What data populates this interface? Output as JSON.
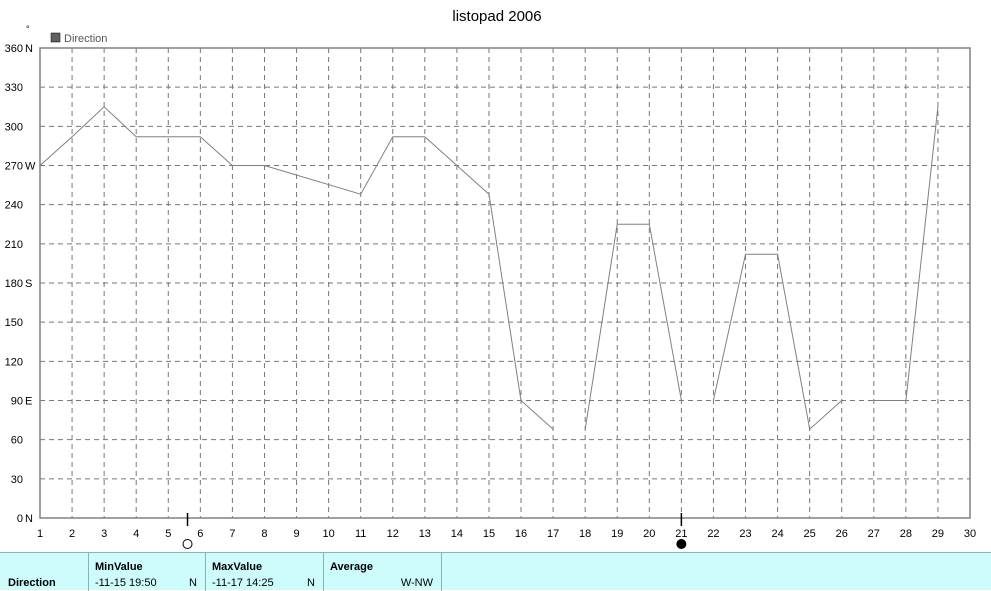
{
  "chart_data": {
    "type": "line",
    "title": "listopad 2006",
    "y_unit_symbol": "°",
    "legend": [
      {
        "name": "Direction",
        "color": "#606060"
      }
    ],
    "legend_position": "top-left",
    "grid": true,
    "xlim": [
      1,
      30
    ],
    "ylim": [
      0,
      360
    ],
    "x_ticks": [
      1,
      2,
      3,
      4,
      5,
      6,
      7,
      8,
      9,
      10,
      11,
      12,
      13,
      14,
      15,
      16,
      17,
      18,
      19,
      20,
      21,
      22,
      23,
      24,
      25,
      26,
      27,
      28,
      29,
      30
    ],
    "y_ticks": [
      {
        "value": 0,
        "label": "0",
        "dir": "N"
      },
      {
        "value": 30,
        "label": "30",
        "dir": ""
      },
      {
        "value": 60,
        "label": "60",
        "dir": ""
      },
      {
        "value": 90,
        "label": "90",
        "dir": "E"
      },
      {
        "value": 120,
        "label": "120",
        "dir": ""
      },
      {
        "value": 150,
        "label": "150",
        "dir": ""
      },
      {
        "value": 180,
        "label": "180",
        "dir": "S"
      },
      {
        "value": 210,
        "label": "210",
        "dir": ""
      },
      {
        "value": 240,
        "label": "240",
        "dir": ""
      },
      {
        "value": 270,
        "label": "270",
        "dir": "W"
      },
      {
        "value": 300,
        "label": "300",
        "dir": ""
      },
      {
        "value": 330,
        "label": "330",
        "dir": ""
      },
      {
        "value": 360,
        "label": "360",
        "dir": "N"
      }
    ],
    "series": [
      {
        "name": "Direction",
        "color": "#808080",
        "segments": [
          [
            [
              1,
              270
            ],
            [
              2,
              292
            ],
            [
              3,
              315
            ],
            [
              4,
              292
            ],
            [
              5,
              292
            ],
            [
              6,
              292
            ],
            [
              7,
              270
            ],
            [
              8,
              270
            ],
            [
              11,
              248
            ],
            [
              12,
              292
            ],
            [
              13,
              292
            ],
            [
              15,
              248
            ],
            [
              16,
              90
            ],
            [
              17,
              68
            ]
          ],
          [
            [
              18,
              68
            ],
            [
              19,
              225
            ],
            [
              20,
              225
            ],
            [
              21,
              90
            ]
          ],
          [
            [
              22,
              90
            ],
            [
              23,
              202
            ],
            [
              24,
              202
            ],
            [
              25,
              68
            ],
            [
              26,
              90
            ]
          ],
          [
            [
              27,
              90
            ],
            [
              28,
              90
            ],
            [
              29,
              315
            ]
          ]
        ]
      }
    ],
    "moon_phases": [
      {
        "x": 5.6,
        "phase": "full"
      },
      {
        "x": 21.0,
        "phase": "new"
      }
    ]
  },
  "stats": {
    "row_label": "Direction",
    "min": {
      "header": "MinValue",
      "date": "-11-15  19:50",
      "dir": "N"
    },
    "max": {
      "header": "MaxValue",
      "date": "-11-17  14:25",
      "dir": "N"
    },
    "avg": {
      "header": "Average",
      "value": "W-NW"
    }
  }
}
